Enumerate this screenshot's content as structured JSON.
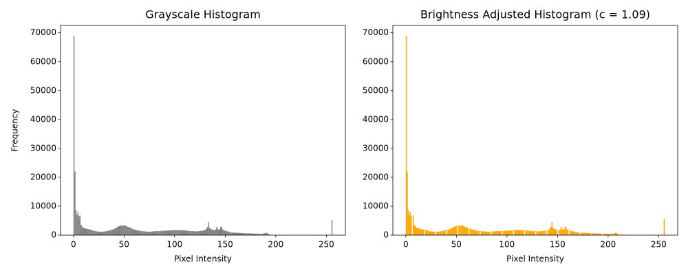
{
  "chart_data": [
    {
      "type": "histogram",
      "title": "Grayscale Histogram",
      "xlabel": "Pixel Intensity",
      "ylabel": "Frequency",
      "color": "#808080",
      "grid": false,
      "xlim": [
        -12.8,
        268.8
      ],
      "ylim": [
        0,
        72555
      ],
      "xticks": [
        0,
        50,
        100,
        150,
        200,
        250
      ],
      "yticks": [
        0,
        10000,
        20000,
        30000,
        40000,
        50000,
        60000,
        70000
      ],
      "bins": [
        0,
        1,
        2,
        3,
        4,
        5,
        6,
        7,
        8,
        9,
        10,
        11,
        12,
        13,
        14,
        15,
        16,
        17,
        18,
        19,
        20,
        21,
        22,
        23,
        24,
        25,
        26,
        27,
        28,
        29,
        30,
        31,
        32,
        33,
        34,
        35,
        36,
        37,
        38,
        39,
        40,
        41,
        42,
        43,
        44,
        45,
        46,
        47,
        48,
        49,
        50,
        51,
        52,
        53,
        54,
        55,
        56,
        57,
        58,
        59,
        60,
        61,
        62,
        63,
        64,
        65,
        66,
        67,
        68,
        69,
        70,
        71,
        72,
        73,
        74,
        75,
        76,
        77,
        78,
        79,
        80,
        81,
        82,
        83,
        84,
        85,
        86,
        87,
        88,
        89,
        90,
        91,
        92,
        93,
        94,
        95,
        96,
        97,
        98,
        99,
        100,
        101,
        102,
        103,
        104,
        105,
        106,
        107,
        108,
        109,
        110,
        111,
        112,
        113,
        114,
        115,
        116,
        117,
        118,
        119,
        120,
        121,
        122,
        123,
        124,
        125,
        126,
        127,
        128,
        129,
        130,
        131,
        132,
        133,
        134,
        135,
        136,
        137,
        138,
        139,
        140,
        141,
        142,
        143,
        144,
        145,
        146,
        147,
        148,
        149,
        150,
        151,
        152,
        153,
        154,
        155,
        156,
        157,
        158,
        159,
        160,
        161,
        162,
        163,
        164,
        165,
        166,
        167,
        168,
        169,
        170,
        171,
        172,
        173,
        174,
        175,
        176,
        177,
        178,
        179,
        180,
        181,
        182,
        183,
        184,
        185,
        186,
        187,
        188,
        189,
        190,
        191,
        192,
        193,
        194,
        195,
        196,
        197,
        198,
        199,
        200,
        201,
        202,
        203,
        204,
        205,
        206,
        207,
        208,
        209,
        210,
        211,
        212,
        213,
        214,
        215,
        216,
        217,
        218,
        219,
        220,
        221,
        222,
        223,
        224,
        225,
        226,
        227,
        228,
        229,
        230,
        231,
        232,
        233,
        234,
        235,
        236,
        237,
        238,
        239,
        240,
        241,
        242,
        243,
        244,
        245,
        246,
        247,
        248,
        249,
        250,
        251,
        252,
        253,
        254,
        255,
        256
      ],
      "values": [
        69000,
        22000,
        8500,
        7000,
        8000,
        6500,
        6800,
        3500,
        3000,
        2600,
        2400,
        2300,
        2200,
        2200,
        2100,
        2000,
        1900,
        1800,
        1700,
        1600,
        1500,
        1400,
        1300,
        1300,
        1200,
        1200,
        1200,
        1200,
        1100,
        1200,
        1300,
        1300,
        1400,
        1500,
        1500,
        1600,
        1700,
        1800,
        1900,
        2000,
        2200,
        2400,
        2600,
        2800,
        3000,
        3200,
        3300,
        3400,
        3300,
        3200,
        3500,
        3300,
        3100,
        2900,
        2800,
        2700,
        2500,
        2300,
        2200,
        2000,
        1900,
        1800,
        1700,
        1600,
        1600,
        1500,
        1500,
        1400,
        1400,
        1300,
        1300,
        1300,
        1200,
        1200,
        1200,
        1200,
        1200,
        1300,
        1300,
        1300,
        1400,
        1400,
        1400,
        1400,
        1400,
        1400,
        1500,
        1500,
        1500,
        1500,
        1500,
        1600,
        1600,
        1600,
        1600,
        1600,
        1700,
        1700,
        1700,
        1700,
        1700,
        1700,
        1700,
        1700,
        1700,
        1700,
        1700,
        1700,
        1700,
        1700,
        1600,
        1600,
        1500,
        1500,
        1500,
        1400,
        1400,
        1400,
        1400,
        1400,
        1300,
        1300,
        1300,
        1400,
        1400,
        1500,
        1500,
        1500,
        1600,
        1700,
        1900,
        2300,
        2800,
        4500,
        2600,
        2200,
        2000,
        1900,
        1800,
        1800,
        1900,
        2800,
        2200,
        2000,
        1900,
        2900,
        2800,
        2000,
        1700,
        1600,
        1500,
        1400,
        1300,
        1200,
        1100,
        1000,
        900,
        900,
        900,
        800,
        800,
        800,
        800,
        800,
        800,
        700,
        700,
        700,
        700,
        700,
        600,
        600,
        600,
        600,
        600,
        600,
        500,
        500,
        500,
        500,
        500,
        500,
        500,
        500,
        400,
        400,
        400,
        500,
        600,
        700,
        800,
        700,
        400,
        200,
        100,
        50,
        20,
        10,
        0,
        0,
        0,
        0,
        0,
        0,
        0,
        0,
        0,
        0,
        0,
        0,
        0,
        0,
        0,
        0,
        0,
        0,
        0,
        0,
        0,
        0,
        0,
        0,
        0,
        0,
        0,
        0,
        0,
        0,
        0,
        0,
        0,
        0,
        0,
        0,
        0,
        0,
        0,
        0,
        0,
        0,
        0,
        0,
        0,
        0,
        0,
        0,
        0,
        0,
        0,
        0,
        0,
        0,
        0,
        0,
        0,
        5200
      ]
    },
    {
      "type": "histogram",
      "title": "Brightness Adjusted Histogram (c = 1.09)",
      "xlabel": "Pixel Intensity",
      "color": "#ffa500",
      "grid": false,
      "xlim": [
        -12.8,
        268.8
      ],
      "ylim": [
        0,
        72555
      ],
      "xticks": [
        0,
        50,
        100,
        150,
        200,
        250
      ],
      "yticks": [
        0,
        10000,
        20000,
        30000,
        40000,
        50000,
        60000,
        70000
      ],
      "bins": [
        0,
        1,
        2,
        3,
        4,
        5,
        6,
        7,
        8,
        9,
        10,
        11,
        12,
        13,
        14,
        15,
        16,
        17,
        18,
        19,
        20,
        21,
        22,
        23,
        24,
        25,
        26,
        27,
        28,
        29,
        30,
        31,
        32,
        33,
        34,
        35,
        36,
        37,
        38,
        39,
        40,
        41,
        42,
        43,
        44,
        45,
        46,
        47,
        48,
        49,
        50,
        51,
        52,
        53,
        54,
        55,
        56,
        57,
        58,
        59,
        60,
        61,
        62,
        63,
        64,
        65,
        66,
        67,
        68,
        69,
        70,
        71,
        72,
        73,
        74,
        75,
        76,
        77,
        78,
        79,
        80,
        81,
        82,
        83,
        84,
        85,
        86,
        87,
        88,
        89,
        90,
        91,
        92,
        93,
        94,
        95,
        96,
        97,
        98,
        99,
        100,
        101,
        102,
        103,
        104,
        105,
        106,
        107,
        108,
        109,
        110,
        111,
        112,
        113,
        114,
        115,
        116,
        117,
        118,
        119,
        120,
        121,
        122,
        123,
        124,
        125,
        126,
        127,
        128,
        129,
        130,
        131,
        132,
        133,
        134,
        135,
        136,
        137,
        138,
        139,
        140,
        141,
        142,
        143,
        144,
        145,
        146,
        147,
        148,
        149,
        150,
        151,
        152,
        153,
        154,
        155,
        156,
        157,
        158,
        159,
        160,
        161,
        162,
        163,
        164,
        165,
        166,
        167,
        168,
        169,
        170,
        171,
        172,
        173,
        174,
        175,
        176,
        177,
        178,
        179,
        180,
        181,
        182,
        183,
        184,
        185,
        186,
        187,
        188,
        189,
        190,
        191,
        192,
        193,
        194,
        195,
        196,
        197,
        198,
        199,
        200,
        201,
        202,
        203,
        204,
        205,
        206,
        207,
        208,
        209,
        210,
        211,
        212,
        213,
        214,
        215,
        216,
        217,
        218,
        219,
        220,
        221,
        222,
        223,
        224,
        225,
        226,
        227,
        228,
        229,
        230,
        231,
        232,
        233,
        234,
        235,
        236,
        237,
        238,
        239,
        240,
        241,
        242,
        243,
        244,
        245,
        246,
        247,
        248,
        249,
        250,
        251,
        252,
        253,
        254,
        255,
        256
      ],
      "values": [
        69000,
        22000,
        8500,
        7000,
        8000,
        6500,
        0,
        6800,
        3500,
        3000,
        2600,
        2400,
        2300,
        2200,
        2200,
        2100,
        2000,
        1900,
        0,
        1800,
        1700,
        1600,
        1500,
        1400,
        1300,
        1300,
        1200,
        1200,
        1200,
        0,
        1200,
        1100,
        1200,
        1300,
        1300,
        1400,
        1500,
        1500,
        1600,
        1700,
        0,
        1800,
        1900,
        2000,
        2200,
        2400,
        2600,
        2800,
        3000,
        3200,
        3300,
        0,
        3400,
        3300,
        3200,
        3500,
        3300,
        3100,
        2900,
        2800,
        2700,
        2500,
        0,
        2300,
        2200,
        2000,
        1900,
        1800,
        1700,
        1600,
        1600,
        1500,
        1500,
        0,
        1400,
        1400,
        1300,
        1300,
        1300,
        1200,
        1200,
        1200,
        1200,
        1200,
        0,
        1300,
        1300,
        1300,
        1400,
        1400,
        1400,
        1400,
        1400,
        1400,
        1500,
        0,
        1500,
        1500,
        1500,
        1500,
        1600,
        1600,
        1600,
        1600,
        1600,
        1700,
        0,
        1700,
        1700,
        1700,
        1700,
        1700,
        1700,
        1700,
        1700,
        1700,
        1700,
        0,
        1700,
        1600,
        1600,
        1500,
        1500,
        1500,
        1400,
        1400,
        1400,
        1400,
        0,
        1400,
        1300,
        1300,
        1300,
        1400,
        1400,
        1500,
        1500,
        1500,
        1600,
        0,
        1700,
        1900,
        2300,
        2800,
        4500,
        2600,
        2200,
        2000,
        1900,
        1800,
        0,
        1800,
        1900,
        2800,
        2200,
        2000,
        1900,
        2900,
        2800,
        2000,
        1700,
        0,
        1600,
        1500,
        1400,
        1300,
        1200,
        1100,
        1000,
        900,
        900,
        900,
        0,
        800,
        800,
        800,
        800,
        800,
        800,
        700,
        700,
        700,
        700,
        0,
        700,
        600,
        600,
        600,
        600,
        600,
        600,
        500,
        500,
        500,
        0,
        500,
        500,
        500,
        500,
        500,
        400,
        400,
        400,
        500,
        600,
        0,
        700,
        800,
        700,
        400,
        200,
        100,
        50,
        20,
        10,
        0,
        0,
        0,
        0,
        0,
        0,
        0,
        0,
        0,
        0,
        0,
        0,
        0,
        0,
        0,
        0,
        0,
        0,
        0,
        0,
        0,
        0,
        0,
        0,
        0,
        0,
        0,
        0,
        0,
        0,
        0,
        0,
        0,
        0,
        0,
        0,
        0,
        0,
        0,
        0,
        5700
      ]
    }
  ]
}
